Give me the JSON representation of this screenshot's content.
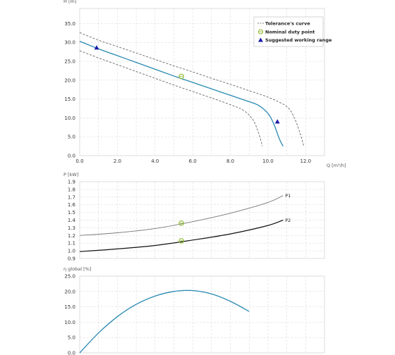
{
  "chart_data": [
    {
      "type": "line",
      "ylabel": "H [m]",
      "xlabel": "Q [m³/h]",
      "xlim": [
        0,
        13
      ],
      "ylim": [
        0,
        39
      ],
      "xticks": [
        0.0,
        2.0,
        4.0,
        6.0,
        8.0,
        10.0,
        12.0
      ],
      "yticks": [
        0.0,
        5.0,
        10.0,
        15.0,
        20.0,
        25.0,
        30.0,
        35.0
      ],
      "xtick_labels": [
        "0.0",
        "2.0",
        "4.0",
        "6.0",
        "8.0",
        "10.0",
        "12.0"
      ],
      "ytick_labels": [
        "0.0",
        "5.0",
        "10.0",
        "15.0",
        "20.0",
        "25.0",
        "30.0",
        "35.0"
      ],
      "grid": true,
      "legend_position": "top-right",
      "legend": [
        "Tolerance's curve",
        "Nominal duty point",
        "Suggested working range"
      ],
      "colors": {
        "curve": "#2a8ab3",
        "tolerance": "#555555",
        "duty_point": "#8cb82b",
        "working_range": "#1a1aa8"
      },
      "series": [
        {
          "role": "curve",
          "x": [
            0,
            1,
            2,
            3,
            4,
            5,
            6,
            7,
            8,
            9,
            9.5,
            10,
            10.3,
            10.6,
            10.8
          ],
          "y": [
            30.3,
            28.3,
            26.5,
            24.7,
            22.9,
            21.1,
            19.4,
            17.7,
            16.0,
            14.3,
            13.3,
            11.2,
            8.5,
            4.5,
            2.5
          ]
        },
        {
          "role": "tolerance-upper",
          "x": [
            0,
            1,
            2,
            3,
            4,
            5,
            6,
            7,
            8,
            9,
            10,
            11,
            11.4,
            11.7,
            11.9
          ],
          "y": [
            32.6,
            30.6,
            28.9,
            27.2,
            25.5,
            23.8,
            22.2,
            20.5,
            18.9,
            17.2,
            15.5,
            13.0,
            10.0,
            6.0,
            2.6
          ]
        },
        {
          "role": "tolerance-lower",
          "x": [
            0,
            1,
            2,
            3,
            4,
            5,
            6,
            7,
            8,
            8.7,
            9.2,
            9.5,
            9.7
          ],
          "y": [
            27.8,
            25.9,
            24.1,
            22.3,
            20.5,
            18.7,
            17.0,
            15.3,
            13.5,
            12.0,
            9.5,
            6.0,
            2.5
          ]
        }
      ],
      "duty_point": {
        "x": 5.4,
        "y": 21.0
      },
      "working_range_points": [
        {
          "x": 0.9,
          "y": 28.6
        },
        {
          "x": 10.5,
          "y": 9.0
        }
      ]
    },
    {
      "type": "line",
      "ylabel": "P [kW]",
      "xlim": [
        0,
        13
      ],
      "ylim": [
        0.9,
        1.9
      ],
      "xticks": [
        0.0,
        2.0,
        4.0,
        6.0,
        8.0,
        10.0,
        12.0
      ],
      "yticks": [
        0.9,
        1.0,
        1.1,
        1.2,
        1.3,
        1.4,
        1.5,
        1.6,
        1.7,
        1.8,
        1.9
      ],
      "ytick_labels": [
        "0.9",
        "1.0",
        "1.1",
        "1.2",
        "1.3",
        "1.4",
        "1.5",
        "1.6",
        "1.7",
        "1.8",
        "1.9"
      ],
      "grid": true,
      "colors": {
        "P1": "#777777",
        "P2": "#111111",
        "duty_point": "#8cb82b"
      },
      "series": [
        {
          "name": "P1",
          "x": [
            0,
            2,
            4,
            6,
            8,
            10,
            10.8
          ],
          "y": [
            1.2,
            1.235,
            1.29,
            1.38,
            1.49,
            1.63,
            1.72
          ]
        },
        {
          "name": "P2",
          "x": [
            0,
            2,
            4,
            6,
            8,
            10,
            10.8
          ],
          "y": [
            0.99,
            1.025,
            1.07,
            1.14,
            1.22,
            1.33,
            1.4
          ]
        }
      ],
      "duty_points": [
        {
          "x": 5.4,
          "y": 1.36
        },
        {
          "x": 5.4,
          "y": 1.13
        }
      ]
    },
    {
      "type": "line",
      "ylabel": "η global [%]",
      "xlim": [
        0,
        13
      ],
      "ylim": [
        0,
        25
      ],
      "xticks": [
        0.0,
        2.0,
        4.0,
        6.0,
        8.0,
        10.0,
        12.0
      ],
      "yticks": [
        0.0,
        5.0,
        10.0,
        15.0,
        20.0,
        25.0
      ],
      "ytick_labels": [
        "0.0",
        "5.0",
        "10.0",
        "15.0",
        "20.0",
        "25.0"
      ],
      "grid": true,
      "colors": {
        "curve": "#2a8ab3"
      },
      "series": [
        {
          "role": "efficiency",
          "x": [
            0,
            1,
            2,
            3,
            4,
            5,
            6,
            7,
            8,
            9
          ],
          "y": [
            0,
            6.5,
            11.8,
            15.8,
            18.5,
            20.0,
            20.3,
            19.2,
            16.8,
            13.5
          ]
        }
      ]
    }
  ]
}
